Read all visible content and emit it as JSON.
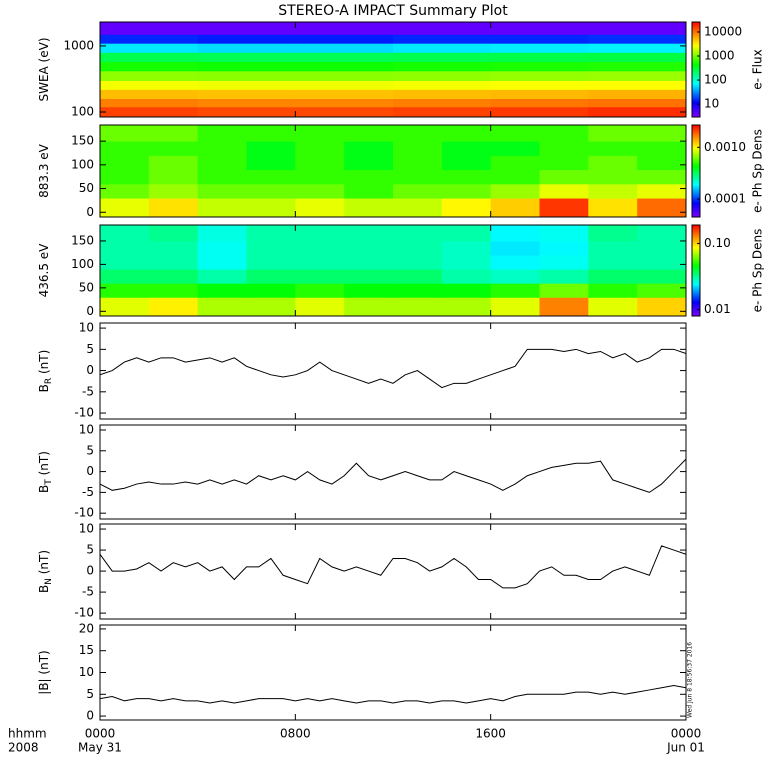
{
  "chart_data": [
    {
      "type": "heatmap",
      "title": "STEREO-A IMPACT Summary Plot",
      "ylabel": "SWEA (eV)",
      "ylog": true,
      "ylim": [
        84,
        2300
      ],
      "yticks": [
        100,
        1000
      ],
      "xlim": [
        0,
        24
      ],
      "xticks": [
        0,
        8,
        16,
        24
      ],
      "xbins": [
        0,
        4,
        8,
        12,
        16,
        20,
        24
      ],
      "ybins": [
        84,
        120,
        160,
        220,
        300,
        420,
        580,
        800,
        1100,
        1500,
        2300
      ],
      "z": [
        [
          15000,
          14000,
          14000,
          15000,
          16000,
          18000
        ],
        [
          9000,
          8500,
          8500,
          9000,
          9500,
          10000
        ],
        [
          5000,
          4800,
          4800,
          5000,
          5200,
          5500
        ],
        [
          2500,
          2400,
          2400,
          2500,
          2600,
          2700
        ],
        [
          1200,
          1150,
          1150,
          1200,
          1250,
          1300
        ],
        [
          500,
          480,
          480,
          500,
          520,
          540
        ],
        [
          250,
          240,
          240,
          250,
          260,
          270
        ],
        [
          60,
          55,
          55,
          60,
          62,
          65
        ],
        [
          15,
          14,
          14,
          15,
          15,
          16
        ],
        [
          4,
          4,
          4,
          4,
          4,
          4
        ]
      ],
      "zlim": [
        2.9,
        26000
      ],
      "zticks": [
        10,
        100,
        1000,
        10000
      ],
      "zlabel": "e- Flux"
    },
    {
      "type": "heatmap",
      "ylabel": "883.3 eV",
      "ylim": [
        -10,
        184
      ],
      "yticks": [
        0,
        50,
        100,
        150
      ],
      "xlim": [
        0,
        24
      ],
      "xticks": [
        0,
        8,
        16,
        24
      ],
      "xbins": [
        0,
        2,
        4,
        6,
        8,
        10,
        12,
        14,
        16,
        18,
        20,
        22,
        24
      ],
      "ybins": [
        -10,
        30,
        60,
        90,
        120,
        150,
        184
      ],
      "z": [
        [
          0.0009,
          0.0011,
          0.0008,
          0.0008,
          0.0009,
          0.0008,
          0.0008,
          0.001,
          0.0012,
          0.0022,
          0.0011,
          0.0018
        ],
        [
          0.0006,
          0.0007,
          0.0006,
          0.0006,
          0.0006,
          0.0005,
          0.0006,
          0.0006,
          0.0007,
          0.0009,
          0.0008,
          0.0009
        ],
        [
          0.0005,
          0.0006,
          0.0005,
          0.0005,
          0.0005,
          0.0005,
          0.0005,
          0.0005,
          0.0005,
          0.0006,
          0.0006,
          0.0006
        ],
        [
          0.0005,
          0.0006,
          0.0005,
          0.0004,
          0.0005,
          0.0004,
          0.0005,
          0.0004,
          0.0005,
          0.0005,
          0.0006,
          0.0005
        ],
        [
          0.0005,
          0.0005,
          0.0005,
          0.0004,
          0.0005,
          0.0004,
          0.0005,
          0.0004,
          0.0004,
          0.0005,
          0.0005,
          0.0005
        ],
        [
          0.0006,
          0.0006,
          0.0005,
          0.0005,
          0.0005,
          0.0005,
          0.0005,
          0.0005,
          0.0005,
          0.0005,
          0.0006,
          0.0006
        ]
      ],
      "zlim": [
        4.5e-05,
        0.0027
      ],
      "zticks": [
        0.0001,
        {
          "value": 0.001,
          "label": "0.0010"
        }
      ],
      "zlabel": "e- Ph Sp Dens"
    },
    {
      "type": "heatmap",
      "ylabel": "436.5 eV",
      "ylim": [
        -10,
        184
      ],
      "yticks": [
        0,
        50,
        100,
        150
      ],
      "xlim": [
        0,
        24
      ],
      "xticks": [
        0,
        8,
        16,
        24
      ],
      "xbins": [
        0,
        2,
        4,
        6,
        8,
        10,
        12,
        14,
        16,
        18,
        20,
        22,
        24
      ],
      "ybins": [
        -10,
        30,
        60,
        90,
        120,
        150,
        184
      ],
      "z": [
        [
          0.08,
          0.09,
          0.07,
          0.07,
          0.08,
          0.07,
          0.07,
          0.07,
          0.08,
          0.13,
          0.08,
          0.1
        ],
        [
          0.05,
          0.05,
          0.045,
          0.045,
          0.05,
          0.045,
          0.045,
          0.045,
          0.05,
          0.06,
          0.05,
          0.055
        ],
        [
          0.035,
          0.035,
          0.03,
          0.035,
          0.035,
          0.035,
          0.035,
          0.03,
          0.028,
          0.03,
          0.035,
          0.035
        ],
        [
          0.03,
          0.03,
          0.025,
          0.03,
          0.03,
          0.03,
          0.03,
          0.028,
          0.024,
          0.025,
          0.03,
          0.03
        ],
        [
          0.03,
          0.03,
          0.025,
          0.03,
          0.03,
          0.03,
          0.03,
          0.028,
          0.023,
          0.024,
          0.03,
          0.03
        ],
        [
          0.03,
          0.032,
          0.026,
          0.03,
          0.03,
          0.03,
          0.03,
          0.03,
          0.024,
          0.025,
          0.032,
          0.03
        ]
      ],
      "zlim": [
        0.008,
        0.19
      ],
      "zticks": [
        0.01,
        {
          "value": 0.1,
          "label": "0.10"
        }
      ],
      "zlabel": "e- Ph Sp Dens"
    },
    {
      "type": "line",
      "ylabel": "B",
      "ylabel_sub": "R",
      "ylabel_unit": " (nT)",
      "ylim": [
        -11.4,
        11.2
      ],
      "yticks": [
        -10,
        -5,
        0,
        5,
        10
      ],
      "xlim": [
        0,
        24
      ],
      "xticks": [
        0,
        8,
        16,
        24
      ],
      "color": "#000000",
      "x": [
        0,
        0.5,
        1,
        1.5,
        2,
        2.5,
        3,
        3.5,
        4,
        4.5,
        5,
        5.5,
        6,
        6.5,
        7,
        7.5,
        8,
        8.5,
        9,
        9.5,
        10,
        10.5,
        11,
        11.5,
        12,
        12.5,
        13,
        13.5,
        14,
        14.5,
        15,
        15.5,
        16,
        16.5,
        17,
        17.5,
        18,
        18.5,
        19,
        19.5,
        20,
        20.5,
        21,
        21.5,
        22,
        22.5,
        23,
        23.5,
        24
      ],
      "values": [
        -1,
        0,
        2,
        3,
        2,
        3,
        3,
        2,
        2.5,
        3,
        2,
        3,
        1,
        0,
        -1,
        -1.5,
        -1,
        0,
        2,
        0,
        -1,
        -2,
        -3,
        -2,
        -3,
        -1,
        0,
        -2,
        -4,
        -3,
        -3,
        -2,
        -1,
        0,
        1,
        5,
        5,
        5,
        4.5,
        5,
        4,
        4.5,
        3,
        4,
        2,
        3,
        5,
        5,
        4
      ]
    },
    {
      "type": "line",
      "ylabel": "B",
      "ylabel_sub": "T",
      "ylabel_unit": " (nT)",
      "ylim": [
        -11.4,
        11.2
      ],
      "yticks": [
        -10,
        -5,
        0,
        5,
        10
      ],
      "xlim": [
        0,
        24
      ],
      "xticks": [
        0,
        8,
        16,
        24
      ],
      "color": "#000000",
      "x": [
        0,
        0.5,
        1,
        1.5,
        2,
        2.5,
        3,
        3.5,
        4,
        4.5,
        5,
        5.5,
        6,
        6.5,
        7,
        7.5,
        8,
        8.5,
        9,
        9.5,
        10,
        10.5,
        11,
        11.5,
        12,
        12.5,
        13,
        13.5,
        14,
        14.5,
        15,
        15.5,
        16,
        16.5,
        17,
        17.5,
        18,
        18.5,
        19,
        19.5,
        20,
        20.5,
        21,
        21.5,
        22,
        22.5,
        23,
        23.5,
        24
      ],
      "values": [
        -3,
        -4.5,
        -4,
        -3,
        -2.5,
        -3,
        -3,
        -2.5,
        -3,
        -2,
        -3,
        -2,
        -3,
        -1,
        -2,
        -1,
        -2,
        0,
        -2,
        -3,
        -1,
        2,
        -1,
        -2,
        -1,
        0,
        -1,
        -2,
        -2,
        0,
        -1,
        -2,
        -3,
        -4.5,
        -3,
        -1,
        0,
        1,
        1.5,
        2,
        2,
        2.5,
        -2,
        -3,
        -4,
        -5,
        -3,
        0,
        3
      ]
    },
    {
      "type": "line",
      "ylabel": "B",
      "ylabel_sub": "N",
      "ylabel_unit": " (nT)",
      "ylim": [
        -11.4,
        11.2
      ],
      "yticks": [
        -10,
        -5,
        0,
        5,
        10
      ],
      "xlim": [
        0,
        24
      ],
      "xticks": [
        0,
        8,
        16,
        24
      ],
      "color": "#000000",
      "x": [
        0,
        0.5,
        1,
        1.5,
        2,
        2.5,
        3,
        3.5,
        4,
        4.5,
        5,
        5.5,
        6,
        6.5,
        7,
        7.5,
        8,
        8.5,
        9,
        9.5,
        10,
        10.5,
        11,
        11.5,
        12,
        12.5,
        13,
        13.5,
        14,
        14.5,
        15,
        15.5,
        16,
        16.5,
        17,
        17.5,
        18,
        18.5,
        19,
        19.5,
        20,
        20.5,
        21,
        21.5,
        22,
        22.5,
        23,
        23.5,
        24
      ],
      "values": [
        4,
        0,
        0,
        0.5,
        2,
        0,
        2,
        1,
        2,
        0,
        1,
        -2,
        1,
        1,
        3,
        -1,
        -2,
        -3,
        3,
        1,
        0,
        1,
        0,
        -1,
        3,
        3,
        2,
        0,
        1,
        3,
        1,
        -2,
        -2,
        -4,
        -4,
        -3,
        0,
        1,
        -1,
        -1,
        -2,
        -2,
        0,
        1,
        0,
        -1,
        6,
        5,
        4
      ]
    },
    {
      "type": "line",
      "ylabel": "|B| (nT)",
      "ylim": [
        -0.9,
        20.9
      ],
      "yticks": [
        0,
        5,
        10,
        15,
        20
      ],
      "xlim": [
        0,
        24
      ],
      "color": "#000000",
      "xticks": [
        {
          "value": 0,
          "label": "0000",
          "date": "May 31"
        },
        {
          "value": 8,
          "label": "0800"
        },
        {
          "value": 16,
          "label": "1600"
        },
        {
          "value": 24,
          "label": "0000",
          "date": "Jun 01"
        }
      ],
      "xlabel": "hhmm",
      "year": "2008",
      "annotation": "Wed Jun  8 18:56:37 2016",
      "x": [
        0,
        0.5,
        1,
        1.5,
        2,
        2.5,
        3,
        3.5,
        4,
        4.5,
        5,
        5.5,
        6,
        6.5,
        7,
        7.5,
        8,
        8.5,
        9,
        9.5,
        10,
        10.5,
        11,
        11.5,
        12,
        12.5,
        13,
        13.5,
        14,
        14.5,
        15,
        15.5,
        16,
        16.5,
        17,
        17.5,
        18,
        18.5,
        19,
        19.5,
        20,
        20.5,
        21,
        21.5,
        22,
        22.5,
        23,
        23.5,
        24
      ],
      "values": [
        4,
        4.5,
        3.5,
        4,
        4,
        3.5,
        4,
        3.5,
        3.5,
        3,
        3.5,
        3,
        3.5,
        4,
        4,
        4,
        3.5,
        4,
        3.5,
        4,
        3.5,
        3,
        3.5,
        3.5,
        3,
        3.5,
        3.5,
        3,
        3.5,
        3.5,
        3,
        3.5,
        4,
        3.5,
        4.5,
        5,
        5,
        5,
        5,
        5.5,
        5.5,
        5,
        5.5,
        5,
        5.5,
        6,
        6.5,
        7,
        6.5
      ]
    }
  ]
}
